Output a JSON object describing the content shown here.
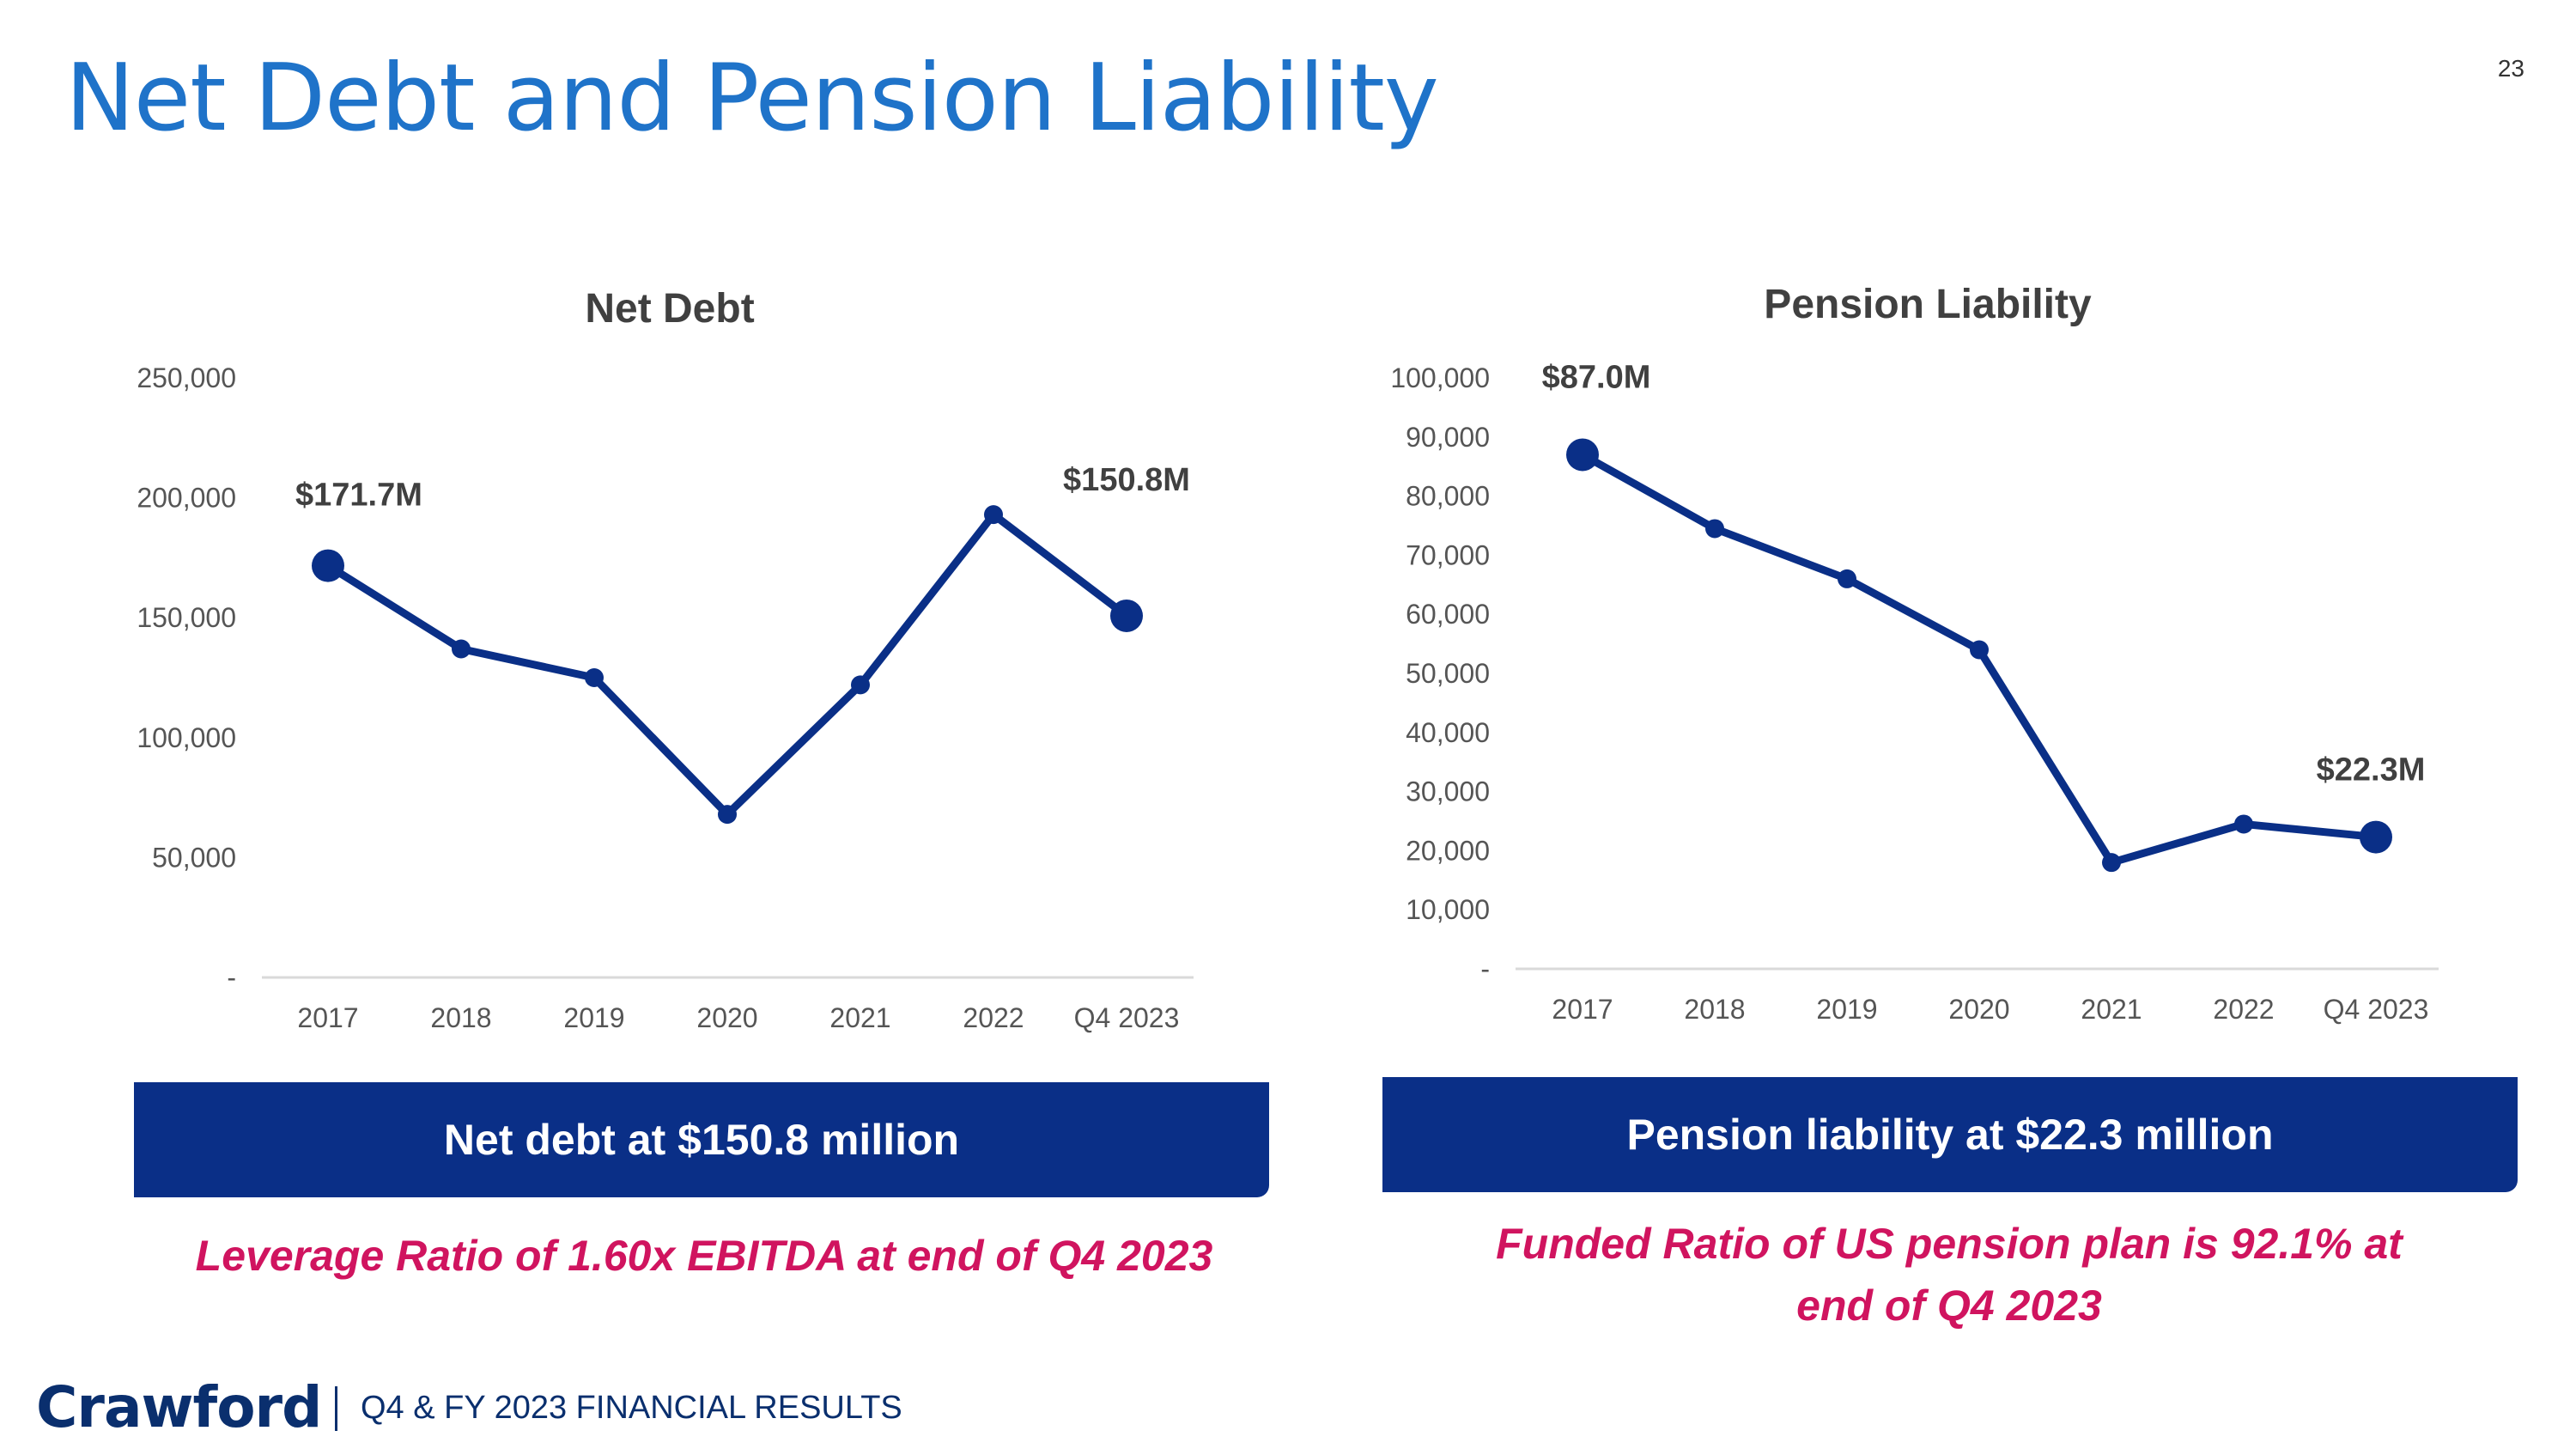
{
  "page": {
    "title": "Net Debt and Pension Liability",
    "number": "23"
  },
  "colors": {
    "title": "#1f73c9",
    "series": "#0a2f87",
    "banner": "#0a2f87",
    "note": "#d0145f",
    "footer": "#0a2f6e"
  },
  "chart_data": [
    {
      "type": "line",
      "title": "Net Debt",
      "categories": [
        "2017",
        "2018",
        "2019",
        "2020",
        "2021",
        "2022",
        "Q4 2023"
      ],
      "values": [
        171700,
        137000,
        125000,
        68000,
        122000,
        193000,
        150800
      ],
      "ylim": [
        0,
        250000
      ],
      "yticks": [
        0,
        50000,
        100000,
        150000,
        200000,
        250000
      ],
      "ytick_labels": [
        "-",
        "50,000",
        "100,000",
        "150,000",
        "200,000",
        "250,000"
      ],
      "data_labels": [
        {
          "index": 0,
          "text": "$171.7M"
        },
        {
          "index": 6,
          "text": "$150.8M"
        }
      ],
      "grid": false,
      "color": "#0a2f87"
    },
    {
      "type": "line",
      "title": "Pension Liability",
      "categories": [
        "2017",
        "2018",
        "2019",
        "2020",
        "2021",
        "2022",
        "Q4 2023"
      ],
      "values": [
        87000,
        74500,
        66000,
        54000,
        18000,
        24500,
        22300
      ],
      "ylim": [
        0,
        100000
      ],
      "yticks": [
        0,
        10000,
        20000,
        30000,
        40000,
        50000,
        60000,
        70000,
        80000,
        90000,
        100000
      ],
      "ytick_labels": [
        "-",
        "10,000",
        "20,000",
        "30,000",
        "40,000",
        "50,000",
        "60,000",
        "70,000",
        "80,000",
        "90,000",
        "100,000"
      ],
      "data_labels": [
        {
          "index": 0,
          "text": "$87.0M"
        },
        {
          "index": 6,
          "text": "$22.3M"
        }
      ],
      "grid": false,
      "color": "#0a2f87"
    }
  ],
  "summaries": [
    {
      "banner": "Net debt at $150.8 million",
      "note": "Leverage Ratio of 1.60x EBITDA at end of Q4 2023"
    },
    {
      "banner": "Pension liability at $22.3 million",
      "note_line1": "Funded Ratio of US pension plan is 92.1% at",
      "note_line2": "end of Q4 2023"
    }
  ],
  "footer": {
    "logo": "Crawford",
    "text": "Q4 & FY 2023 FINANCIAL RESULTS"
  }
}
